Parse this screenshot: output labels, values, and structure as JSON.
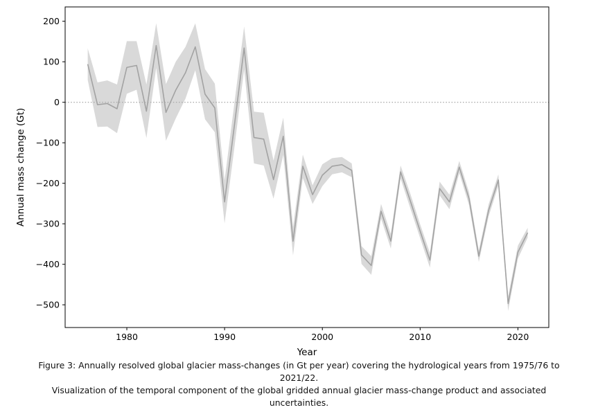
{
  "caption": {
    "line1": "Figure 3: Annually resolved global glacier mass-changes (in Gt per year) covering the hydrological years from 1975/76 to",
    "line2": "2021/22.",
    "line3": "Visualization of the temporal component of the global gridded annual glacier mass-change product and associated",
    "line4": "uncertainties."
  },
  "chart_data": {
    "type": "line",
    "title": "",
    "xlabel": "Year",
    "ylabel": "Annual mass change (Gt)",
    "x": [
      1976,
      1977,
      1978,
      1979,
      1980,
      1981,
      1982,
      1983,
      1984,
      1985,
      1986,
      1987,
      1988,
      1989,
      1990,
      1991,
      1992,
      1993,
      1994,
      1995,
      1996,
      1997,
      1998,
      1999,
      2000,
      2001,
      2002,
      2003,
      2004,
      2005,
      2006,
      2007,
      2008,
      2009,
      2010,
      2011,
      2012,
      2013,
      2014,
      2015,
      2016,
      2017,
      2018,
      2019,
      2020,
      2021
    ],
    "series": [
      {
        "name": "annual_mass_change_gt",
        "values": [
          94,
          -6,
          -3,
          -16,
          86,
          91,
          -22,
          140,
          -25,
          30,
          73,
          137,
          20,
          -14,
          -246,
          -58,
          134,
          -87,
          -91,
          -191,
          -84,
          -343,
          -158,
          -228,
          -180,
          -158,
          -154,
          -168,
          -377,
          -403,
          -269,
          -343,
          -172,
          -244,
          -318,
          -390,
          -213,
          -246,
          -160,
          -238,
          -380,
          -267,
          -192,
          -497,
          -370,
          -322
        ]
      },
      {
        "name": "uncertainty_halfwidth_gt",
        "values": [
          39,
          55,
          57,
          60,
          65,
          60,
          66,
          55,
          70,
          70,
          64,
          58,
          62,
          60,
          53,
          55,
          53,
          64,
          65,
          47,
          46,
          35,
          29,
          23,
          27,
          20,
          19,
          17,
          22,
          23,
          18,
          18,
          16,
          18,
          17,
          18,
          17,
          18,
          15,
          16,
          14,
          15,
          14,
          18,
          16,
          12
        ]
      }
    ],
    "x_ticks": [
      "1980",
      "1990",
      "2000",
      "2010",
      "2020"
    ],
    "x_tick_values": [
      1980,
      1990,
      2000,
      2010,
      2020
    ],
    "y_ticks": [
      "200",
      "100",
      "0",
      "−100",
      "−200",
      "−300",
      "−400",
      "−500"
    ],
    "y_tick_values": [
      200,
      100,
      0,
      -100,
      -200,
      -300,
      -400,
      -500
    ],
    "xlim": [
      1973.69,
      2023.16
    ],
    "ylim": [
      -556.1,
      235.4
    ],
    "grid": false,
    "legend": "none",
    "zero_line": {
      "value": 0,
      "style": "dotted"
    },
    "colors": {
      "line": "#a2a2a2",
      "band": "#d9d9d9",
      "zero_line": "#aaaaaa",
      "axis": "#000000",
      "text": "#000000"
    }
  }
}
